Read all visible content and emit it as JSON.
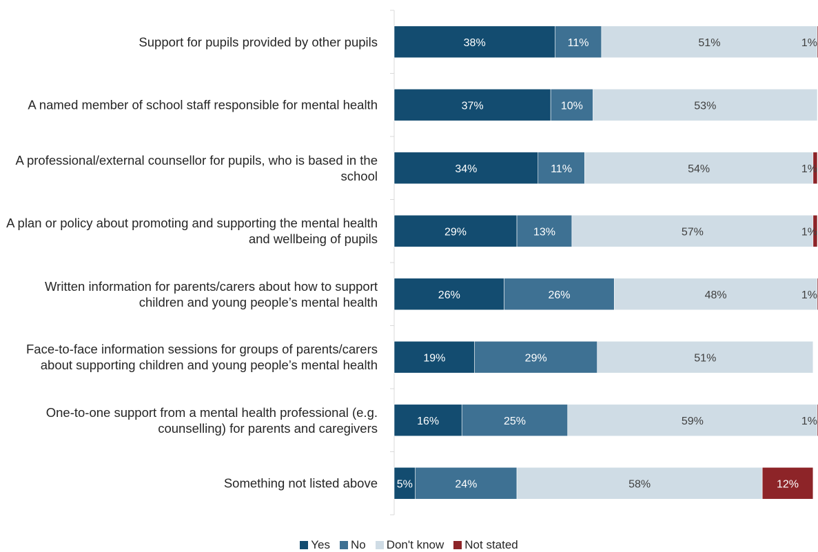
{
  "chart_data": {
    "type": "bar",
    "orientation": "horizontal-stacked-100",
    "categories": [
      "Support for pupils provided by other pupils",
      "A named member of school staff responsible for mental health",
      "A professional/external counsellor for pupils, who is based in the school",
      "A plan or policy about promoting and supporting the mental health and wellbeing of pupils",
      "Written information for parents/carers about how to support children and young people’s mental health",
      "Face-to-face information sessions for groups of parents/carers about supporting children and young people’s mental health",
      "One-to-one support from a mental health professional (e.g. counselling) for parents and caregivers",
      "Something not listed above"
    ],
    "series": [
      {
        "name": "Yes",
        "color": "#134c70",
        "values": [
          38,
          37,
          34,
          29,
          26,
          19,
          16,
          5
        ]
      },
      {
        "name": "No",
        "color": "#3e7193",
        "values": [
          11,
          10,
          11,
          13,
          26,
          29,
          25,
          24
        ]
      },
      {
        "name": "Don't know",
        "color": "#cfdce5",
        "values": [
          51,
          53,
          54,
          57,
          48,
          51,
          59,
          58
        ]
      },
      {
        "name": "Not stated",
        "color": "#8d2428",
        "values": [
          1,
          0,
          1,
          1,
          1,
          0,
          1,
          12
        ]
      }
    ],
    "xlim": [
      0,
      100
    ],
    "value_suffix": "%",
    "legend_position": "bottom",
    "grid": false
  }
}
